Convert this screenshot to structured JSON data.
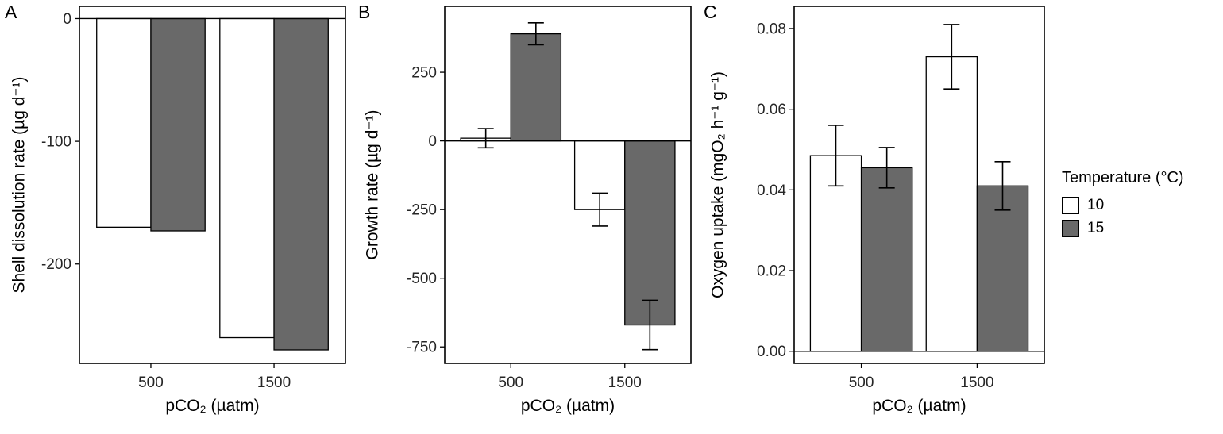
{
  "figure": {
    "legend": {
      "title": "Temperature (°C)",
      "position": "right",
      "entries": [
        {
          "label": "10",
          "color": "#ffffff"
        },
        {
          "label": "15",
          "color": "#696969"
        }
      ]
    }
  },
  "chart_data": [
    {
      "type": "bar",
      "panel_label": "A",
      "title": "",
      "xlabel": "pCO₂ (µatm)",
      "ylabel": "Shell dissolution rate (µg d⁻¹)",
      "categories": [
        "500",
        "1500"
      ],
      "series": [
        {
          "name": "10",
          "color": "#ffffff",
          "values": [
            -170,
            -260
          ],
          "errors": null
        },
        {
          "name": "15",
          "color": "#696969",
          "values": [
            -173,
            -270
          ],
          "errors": null
        }
      ],
      "ylim": [
        -281,
        10
      ],
      "yticks": [
        0,
        -100,
        -200
      ],
      "ytick_labels": [
        "0",
        "-100",
        "-200"
      ],
      "grid": false,
      "legend_position": "right-of-figure"
    },
    {
      "type": "bar",
      "panel_label": "B",
      "title": "",
      "xlabel": "pCO₂ (µatm)",
      "ylabel": "Growth rate (µg d⁻¹)",
      "categories": [
        "500",
        "1500"
      ],
      "series": [
        {
          "name": "10",
          "color": "#ffffff",
          "values": [
            10,
            -250
          ],
          "errors": [
            35,
            60
          ]
        },
        {
          "name": "15",
          "color": "#696969",
          "values": [
            390,
            -670
          ],
          "errors": [
            40,
            90
          ]
        }
      ],
      "ylim": [
        -810,
        490
      ],
      "yticks": [
        250,
        0,
        -250,
        -500,
        -750
      ],
      "ytick_labels": [
        "250",
        "0",
        "-250",
        "-500",
        "-750"
      ],
      "grid": false,
      "legend_position": "right-of-figure"
    },
    {
      "type": "bar",
      "panel_label": "C",
      "title": "",
      "xlabel": "pCO₂ (µatm)",
      "ylabel": "Oxygen uptake (mgO₂ h⁻¹ g⁻¹)",
      "categories": [
        "500",
        "1500"
      ],
      "series": [
        {
          "name": "10",
          "color": "#ffffff",
          "values": [
            0.0485,
            0.073
          ],
          "errors": [
            0.0075,
            0.008
          ]
        },
        {
          "name": "15",
          "color": "#696969",
          "values": [
            0.0455,
            0.041
          ],
          "errors": [
            0.005,
            0.006
          ]
        }
      ],
      "ylim": [
        -0.003,
        0.0855
      ],
      "yticks": [
        0.0,
        0.02,
        0.04,
        0.06,
        0.08
      ],
      "ytick_labels": [
        "0.00",
        "0.02",
        "0.04",
        "0.06",
        "0.08"
      ],
      "grid": false,
      "legend_position": "right-of-figure"
    }
  ]
}
